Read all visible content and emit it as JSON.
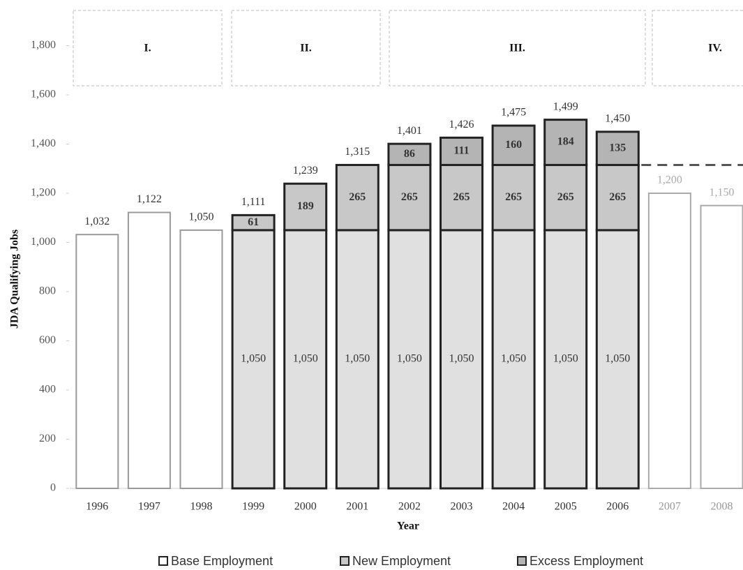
{
  "chart_data": {
    "type": "stacked_bar",
    "y_label": "JDA Qualifying Jobs",
    "x_label": "Year",
    "categories": [
      "1996",
      "1997",
      "1998",
      "1999",
      "2000",
      "2001",
      "2002",
      "2003",
      "2004",
      "2005",
      "2006",
      "2007",
      "2008"
    ],
    "projected": [
      false,
      false,
      false,
      false,
      false,
      false,
      false,
      false,
      false,
      false,
      false,
      true,
      true
    ],
    "series": [
      {
        "name": "Base Employment",
        "color": "#ffffff",
        "values": [
          1032,
          1122,
          1050,
          1050,
          1050,
          1050,
          1050,
          1050,
          1050,
          1050,
          1050,
          1200,
          1150
        ],
        "value_labels": [
          null,
          null,
          null,
          "1,050",
          "1,050",
          "1,050",
          "1,050",
          "1,050",
          "1,050",
          "1,050",
          "1,050",
          null,
          null
        ]
      },
      {
        "name": "New Employment",
        "color": "#c8c8c8",
        "values": [
          null,
          null,
          null,
          61,
          189,
          265,
          265,
          265,
          265,
          265,
          265,
          null,
          null
        ]
      },
      {
        "name": "Excess Employment",
        "color": "#b4b4b4",
        "values": [
          null,
          null,
          null,
          null,
          null,
          null,
          86,
          111,
          160,
          184,
          135,
          null,
          null
        ]
      }
    ],
    "totals": [
      1032,
      1122,
      1050,
      1111,
      1239,
      1315,
      1401,
      1426,
      1475,
      1499,
      1450,
      1200,
      1150
    ],
    "total_labels": [
      "1,032",
      "1,122",
      "1,050",
      "1,111",
      "1,239",
      "1,315",
      "1,401",
      "1,426",
      "1,475",
      "1,499",
      "1,450",
      "1,200",
      "1,150"
    ],
    "hline": {
      "value": 1315,
      "style": "dashed"
    },
    "phases": [
      "I.",
      "II.",
      "III.",
      "IV."
    ],
    "ylim": [
      0,
      1900
    ],
    "yticks": [
      0,
      200,
      400,
      600,
      800,
      {
        "value": 1000,
        "label": "1,000"
      },
      {
        "value": 1200,
        "label": "1,200"
      },
      {
        "value": 1400,
        "label": "1,400"
      },
      {
        "value": 1600,
        "label": "1,600"
      },
      {
        "value": 1800,
        "label": "1,800"
      }
    ],
    "grid": false
  }
}
